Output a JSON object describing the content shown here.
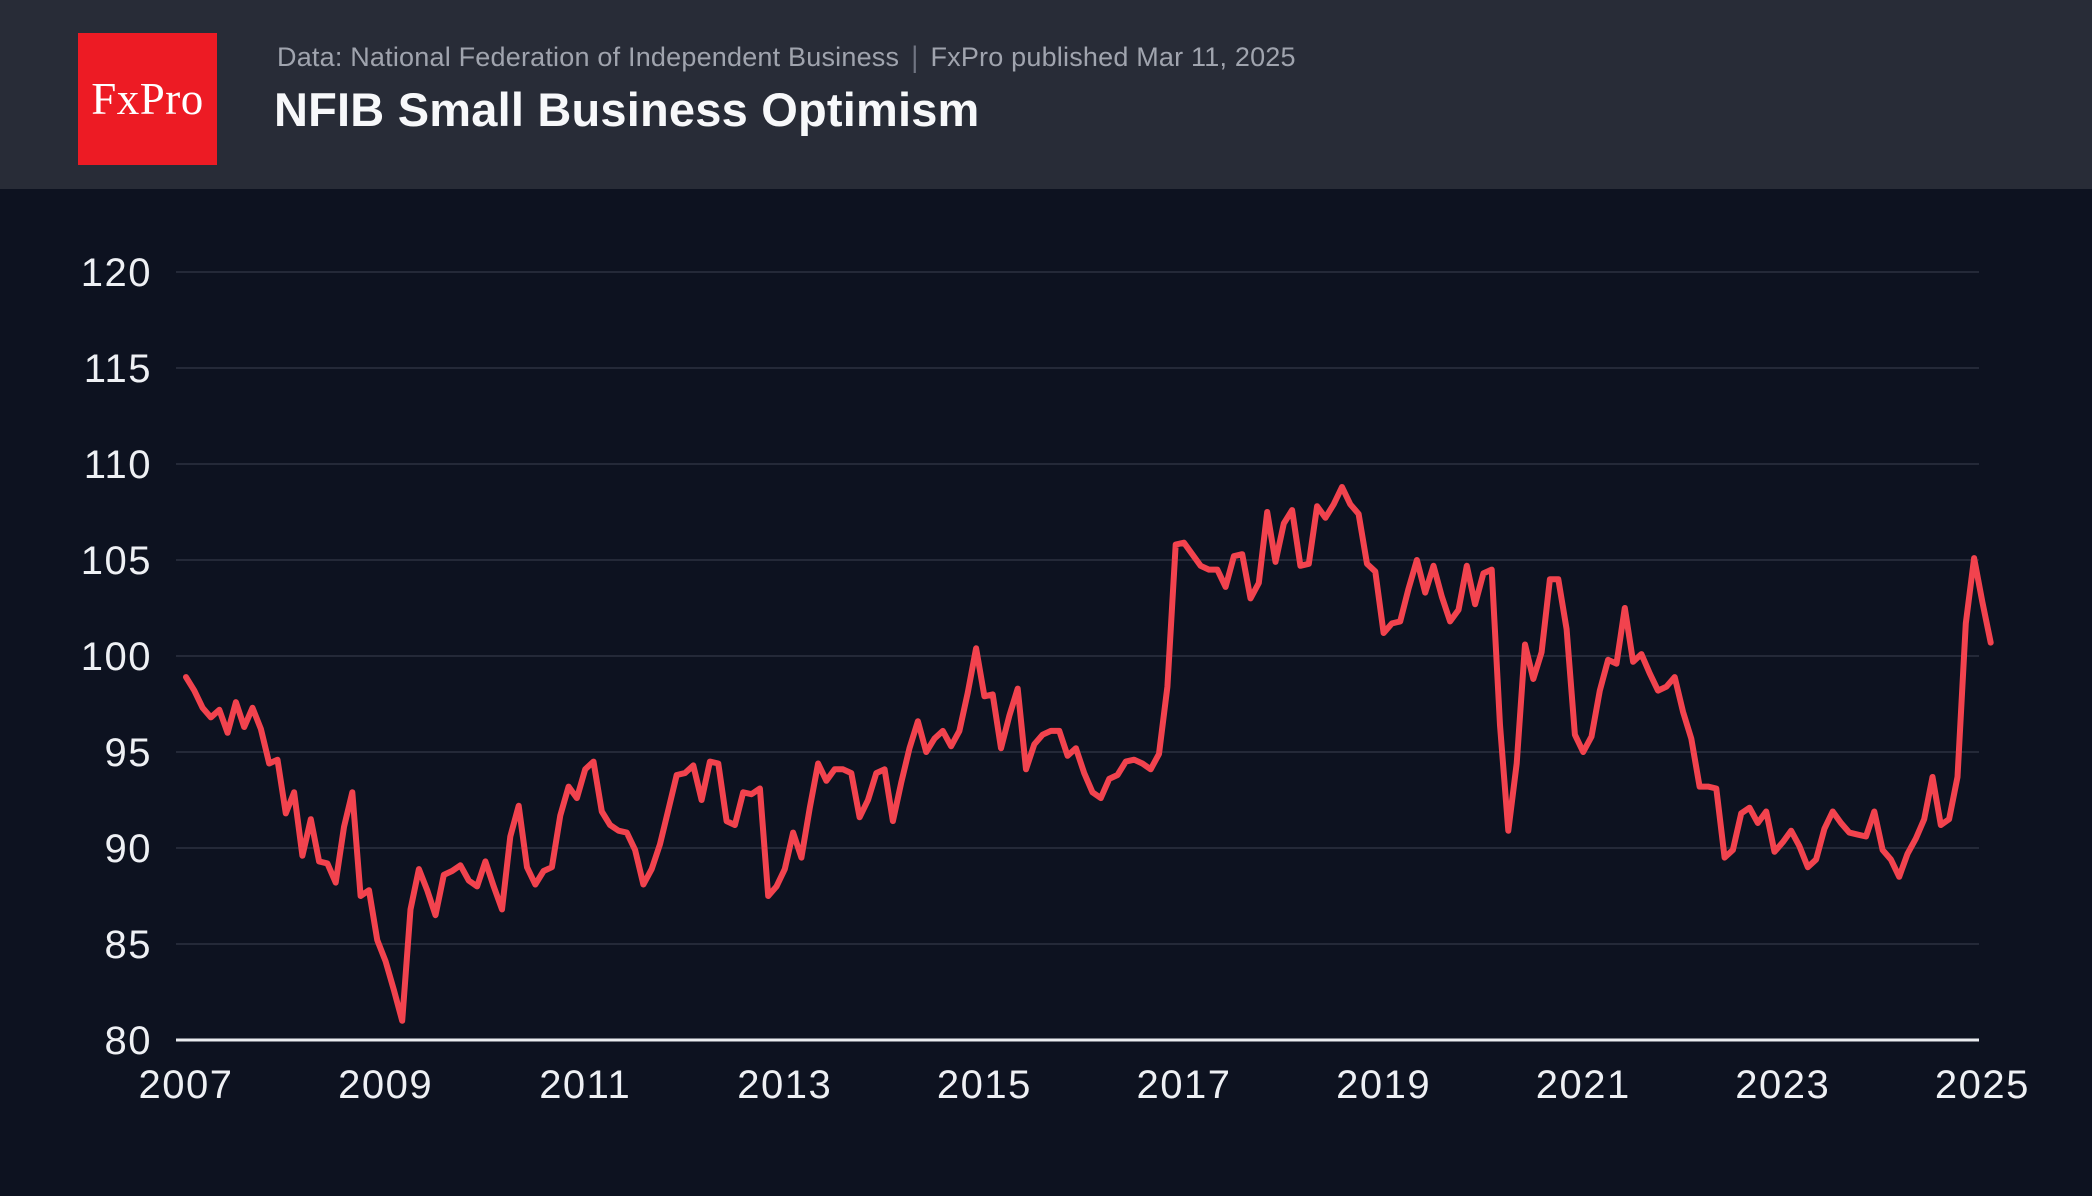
{
  "header": {
    "logo_text": "FxPro",
    "source": "Data: National Federation of Independent Business",
    "separator": "|",
    "published": "FxPro published Mar 11, 2025",
    "title": "NFIB Small Business Optimism"
  },
  "colors": {
    "page_background": "#0d1220",
    "header_background": "#282c37",
    "logo_red": "#ed1b24",
    "line_red": "#f2434e",
    "gridline": "#2c3140",
    "axis_line": "#e9ebef",
    "tick_text": "#eef0f4",
    "subtitle_text": "#a0a4ae",
    "title_text": "#f7f8fa"
  },
  "chart_data": {
    "type": "line",
    "title": "NFIB Small Business Optimism",
    "source": "National Federation of Independent Business",
    "published": "Mar 11, 2025",
    "frequency": "monthly",
    "x_range": [
      "2007-01",
      "2025-02"
    ],
    "grid": "horizontal-only",
    "legend": "none",
    "y_axis": {
      "ticks": [
        80,
        85,
        90,
        95,
        100,
        105,
        110,
        115,
        120
      ],
      "range": [
        80,
        122
      ]
    },
    "x_axis": {
      "ticks": [
        2007,
        2009,
        2011,
        2013,
        2015,
        2017,
        2019,
        2021,
        2023,
        2025
      ]
    },
    "series": [
      {
        "name": "NFIB Small Business Optimism Index",
        "color": "#f2434e",
        "data_by_year": [
          {
            "year": 2007,
            "values": [
              98.9,
              98.2,
              97.3,
              96.8,
              97.2,
              96.0,
              97.6,
              96.3,
              97.3,
              96.2,
              94.4,
              94.6
            ]
          },
          {
            "year": 2008,
            "values": [
              91.8,
              92.9,
              89.6,
              91.5,
              89.3,
              89.2,
              88.2,
              91.1,
              92.9,
              87.5,
              87.8,
              85.2
            ]
          },
          {
            "year": 2009,
            "values": [
              84.1,
              82.6,
              81.0,
              86.8,
              88.9,
              87.8,
              86.5,
              88.6,
              88.8,
              89.1,
              88.3,
              88.0
            ]
          },
          {
            "year": 2010,
            "values": [
              89.3,
              88.0,
              86.8,
              90.6,
              92.2,
              89.0,
              88.1,
              88.8,
              89.0,
              91.7,
              93.2,
              92.6
            ]
          },
          {
            "year": 2011,
            "values": [
              94.1,
              94.5,
              91.9,
              91.2,
              90.9,
              90.8,
              89.9,
              88.1,
              88.9,
              90.2,
              92.0,
              93.8
            ]
          },
          {
            "year": 2012,
            "values": [
              93.9,
              94.3,
              92.5,
              94.5,
              94.4,
              91.4,
              91.2,
              92.9,
              92.8,
              93.1,
              87.5,
              88.0
            ]
          },
          {
            "year": 2013,
            "values": [
              88.9,
              90.8,
              89.5,
              92.1,
              94.4,
              93.5,
              94.1,
              94.1,
              93.9,
              91.6,
              92.5,
              93.9
            ]
          },
          {
            "year": 2014,
            "values": [
              94.1,
              91.4,
              93.4,
              95.2,
              96.6,
              95.0,
              95.7,
              96.1,
              95.3,
              96.1,
              98.1,
              100.4
            ]
          },
          {
            "year": 2015,
            "values": [
              97.9,
              98.0,
              95.2,
              96.9,
              98.3,
              94.1,
              95.4,
              95.9,
              96.1,
              96.1,
              94.8,
              95.2
            ]
          },
          {
            "year": 2016,
            "values": [
              93.9,
              92.9,
              92.6,
              93.6,
              93.8,
              94.5,
              94.6,
              94.4,
              94.1,
              94.9,
              98.4,
              105.8
            ]
          },
          {
            "year": 2017,
            "values": [
              105.9,
              105.3,
              104.7,
              104.5,
              104.5,
              103.6,
              105.2,
              105.3,
              103.0,
              103.8,
              107.5,
              104.9
            ]
          },
          {
            "year": 2018,
            "values": [
              106.9,
              107.6,
              104.7,
              104.8,
              107.8,
              107.2,
              107.9,
              108.8,
              107.9,
              107.4,
              104.8,
              104.4
            ]
          },
          {
            "year": 2019,
            "values": [
              101.2,
              101.7,
              101.8,
              103.5,
              105.0,
              103.3,
              104.7,
              103.1,
              101.8,
              102.4,
              104.7,
              102.7
            ]
          },
          {
            "year": 2020,
            "values": [
              104.3,
              104.5,
              96.4,
              90.9,
              94.4,
              100.6,
              98.8,
              100.2,
              104.0,
              104.0,
              101.4,
              95.9
            ]
          },
          {
            "year": 2021,
            "values": [
              95.0,
              95.8,
              98.2,
              99.8,
              99.6,
              102.5,
              99.7,
              100.1,
              99.1,
              98.2,
              98.4,
              98.9
            ]
          },
          {
            "year": 2022,
            "values": [
              97.1,
              95.7,
              93.2,
              93.2,
              93.1,
              89.5,
              89.9,
              91.8,
              92.1,
              91.3,
              91.9,
              89.8
            ]
          },
          {
            "year": 2023,
            "values": [
              90.3,
              90.9,
              90.1,
              89.0,
              89.4,
              91.0,
              91.9,
              91.3,
              90.8,
              90.7,
              90.6,
              91.9
            ]
          },
          {
            "year": 2024,
            "values": [
              89.9,
              89.4,
              88.5,
              89.7,
              90.5,
              91.5,
              93.7,
              91.2,
              91.5,
              93.7,
              101.7,
              105.1
            ]
          },
          {
            "year": 2025,
            "values": [
              102.8,
              100.7
            ]
          }
        ]
      }
    ]
  }
}
